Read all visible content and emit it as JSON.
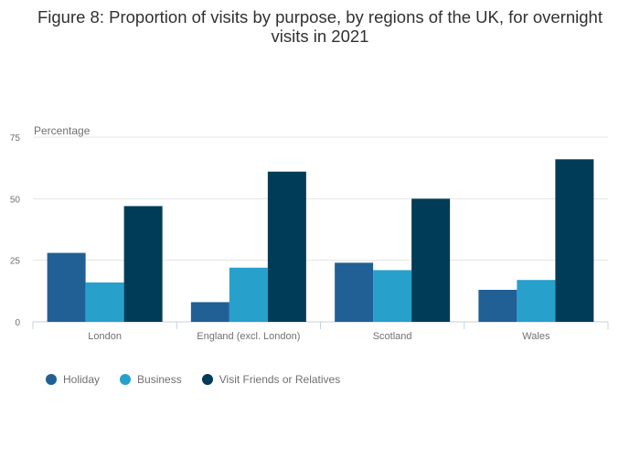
{
  "chart_data": {
    "type": "bar",
    "title": "Figure 8: Proportion of visits by purpose, by regions of the UK, for overnight visits in 2021",
    "ylabel": "Percentage",
    "xlabel": "",
    "ylim": [
      0,
      75
    ],
    "yticks": [
      "0",
      "25",
      "50",
      "75"
    ],
    "grid": true,
    "legend_position": "bottom-left",
    "categories": [
      "London",
      "England (excl. London)",
      "Scotland",
      "Wales"
    ],
    "series": [
      {
        "name": "Holiday",
        "color": "#206095",
        "values": [
          28,
          8,
          24,
          13
        ]
      },
      {
        "name": "Business",
        "color": "#27a0cc",
        "values": [
          16,
          22,
          21,
          17
        ]
      },
      {
        "name": "Visit Friends or Relatives",
        "color": "#003c57",
        "values": [
          47,
          61,
          50,
          66
        ]
      }
    ]
  }
}
